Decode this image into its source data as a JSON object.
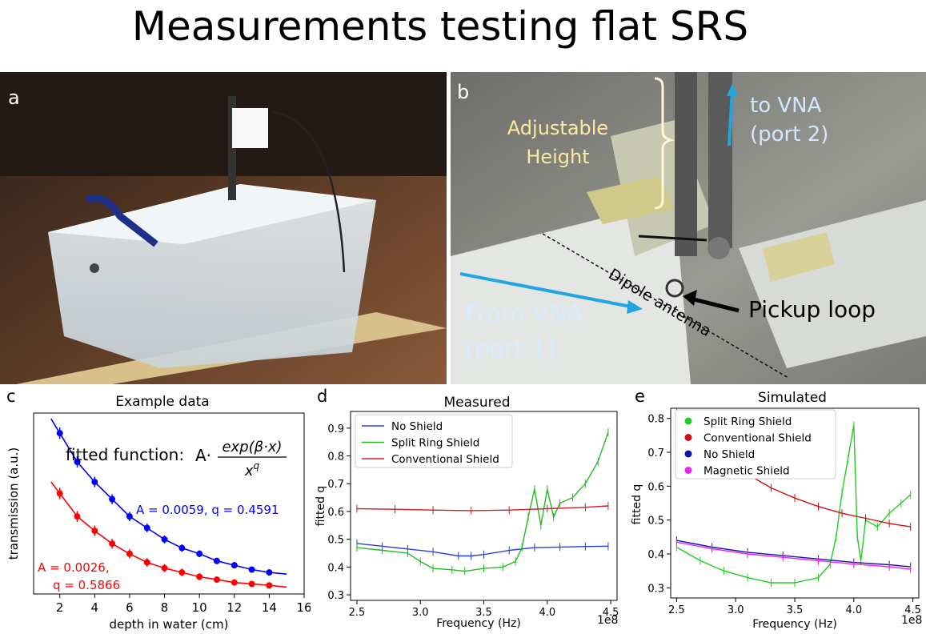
{
  "title": "Measurements testing flat SRS",
  "panel_a": {
    "letter": "a"
  },
  "panel_b": {
    "letter": "b",
    "adjustable_line1": "Adjustable",
    "adjustable_line2": "Height",
    "to_vna_line1": "to VNA",
    "to_vna_line2": "(port 2)",
    "from_vna_line1": "From VNA",
    "from_vna_line2": "(port 1)",
    "dipole_label": "Dipole antenna",
    "pickup_label": "Pickup loop"
  },
  "chart_data": [
    {
      "panel": "c",
      "type": "scatter",
      "title": "Example data",
      "xlabel": "depth in water (cm)",
      "ylabel": "transmission (a.u.)",
      "xlim": [
        0.5,
        16
      ],
      "xticks": [
        "2",
        "4",
        "6",
        "8",
        "10",
        "12",
        "14",
        "16"
      ],
      "formula_label": "fitted function:",
      "formula_prefix": "A·",
      "formula_numerator": "exp(β·x)",
      "formula_denominator": "x^q",
      "annotations": [
        "A = 0.0059, q = 0.4591",
        "A = 0.0026,",
        "q = 0.5866"
      ],
      "colors": {
        "blue": "#0000ff",
        "red": "#ff0000"
      },
      "series": [
        {
          "color": "#0000ff",
          "fit": {
            "A": 0.0059,
            "q": 0.4591
          },
          "x": [
            2,
            3,
            4,
            5,
            6,
            7,
            8,
            9,
            10,
            11,
            12,
            13,
            14
          ],
          "y": [
            0.93,
            0.83,
            0.76,
            0.7,
            0.64,
            0.6,
            0.56,
            0.53,
            0.51,
            0.485,
            0.47,
            0.455,
            0.445
          ]
        },
        {
          "color": "#ff0000",
          "fit": {
            "A": 0.0026,
            "q": 0.5866
          },
          "x": [
            2,
            3,
            4,
            5,
            6,
            7,
            8,
            9,
            10,
            11,
            12,
            13,
            14
          ],
          "y": [
            0.72,
            0.64,
            0.59,
            0.545,
            0.51,
            0.48,
            0.46,
            0.445,
            0.43,
            0.42,
            0.41,
            0.405,
            0.4
          ]
        }
      ]
    },
    {
      "panel": "d",
      "type": "line",
      "title": "Measured",
      "xlabel": "Frequency (Hz)",
      "ylabel": "fitted q",
      "x_multiplier": "1e8",
      "xlim": [
        245000000.0,
        455000000.0
      ],
      "ylim": [
        0.28,
        0.96
      ],
      "xticks": [
        "2.5",
        "3.0",
        "3.5",
        "4.0",
        "4.5"
      ],
      "yticks": [
        "0.3",
        "0.4",
        "0.5",
        "0.6",
        "0.7",
        "0.8",
        "0.9"
      ],
      "legend": "top-left",
      "series": [
        {
          "name": "No Shield",
          "color": "#2a3fd6",
          "x": [
            250000000.0,
            270000000.0,
            290000000.0,
            310000000.0,
            330000000.0,
            340000000.0,
            350000000.0,
            370000000.0,
            390000000.0,
            410000000.0,
            430000000.0,
            448000000.0
          ],
          "y": [
            0.485,
            0.475,
            0.465,
            0.455,
            0.44,
            0.44,
            0.445,
            0.46,
            0.47,
            0.472,
            0.474,
            0.475
          ]
        },
        {
          "name": "Split Ring Shield",
          "color": "#22bb22",
          "x": [
            250000000.0,
            270000000.0,
            290000000.0,
            300000000.0,
            310000000.0,
            325000000.0,
            335000000.0,
            350000000.0,
            365000000.0,
            375000000.0,
            380000000.0,
            385000000.0,
            390000000.0,
            395000000.0,
            400000000.0,
            405000000.0,
            410000000.0,
            420000000.0,
            430000000.0,
            440000000.0,
            448000000.0
          ],
          "y": [
            0.47,
            0.46,
            0.45,
            0.42,
            0.395,
            0.39,
            0.385,
            0.395,
            0.4,
            0.42,
            0.47,
            0.58,
            0.68,
            0.55,
            0.68,
            0.58,
            0.63,
            0.65,
            0.7,
            0.78,
            0.885
          ]
        },
        {
          "name": "Conventional Shield",
          "color": "#cc2222",
          "x": [
            250000000.0,
            280000000.0,
            310000000.0,
            340000000.0,
            370000000.0,
            400000000.0,
            430000000.0,
            448000000.0
          ],
          "y": [
            0.61,
            0.608,
            0.605,
            0.603,
            0.605,
            0.61,
            0.615,
            0.62
          ]
        }
      ]
    },
    {
      "panel": "e",
      "type": "line",
      "title": "Simulated",
      "xlabel": "Frequency (Hz)",
      "ylabel": "fitted q",
      "x_multiplier": "1e8",
      "xlim": [
        245000000.0,
        455000000.0
      ],
      "ylim": [
        0.27,
        0.83
      ],
      "xticks": [
        "2.5",
        "3.0",
        "3.5",
        "4.0",
        "4.5"
      ],
      "yticks": [
        "0.3",
        "0.4",
        "0.5",
        "0.6",
        "0.7",
        "0.8"
      ],
      "legend": "top-left",
      "series": [
        {
          "name": "Split Ring Shield",
          "color": "#22cc22",
          "x": [
            250000000.0,
            270000000.0,
            290000000.0,
            310000000.0,
            330000000.0,
            350000000.0,
            370000000.0,
            380000000.0,
            385000000.0,
            390000000.0,
            395000000.0,
            400000000.0,
            403000000.0,
            406000000.0,
            410000000.0,
            420000000.0,
            430000000.0,
            440000000.0,
            448000000.0
          ],
          "y": [
            0.42,
            0.38,
            0.35,
            0.33,
            0.315,
            0.315,
            0.33,
            0.37,
            0.45,
            0.58,
            0.68,
            0.78,
            0.45,
            0.38,
            0.5,
            0.48,
            0.52,
            0.55,
            0.575
          ]
        },
        {
          "name": "Conventional Shield",
          "color": "#cc1111",
          "x": [
            250000000.0,
            270000000.0,
            290000000.0,
            310000000.0,
            330000000.0,
            350000000.0,
            370000000.0,
            390000000.0,
            410000000.0,
            430000000.0,
            448000000.0
          ],
          "y": [
            0.82,
            0.74,
            0.68,
            0.635,
            0.595,
            0.565,
            0.54,
            0.52,
            0.505,
            0.49,
            0.48
          ]
        },
        {
          "name": "No Shield",
          "color": "#1111aa",
          "x": [
            250000000.0,
            280000000.0,
            310000000.0,
            340000000.0,
            370000000.0,
            400000000.0,
            430000000.0,
            448000000.0
          ],
          "y": [
            0.44,
            0.42,
            0.405,
            0.395,
            0.385,
            0.375,
            0.368,
            0.362
          ]
        },
        {
          "name": "Magnetic Shield",
          "color": "#ee22ee",
          "x": [
            250000000.0,
            280000000.0,
            310000000.0,
            340000000.0,
            370000000.0,
            400000000.0,
            430000000.0,
            448000000.0
          ],
          "y": [
            0.435,
            0.415,
            0.4,
            0.39,
            0.38,
            0.37,
            0.362,
            0.355
          ]
        }
      ]
    }
  ]
}
